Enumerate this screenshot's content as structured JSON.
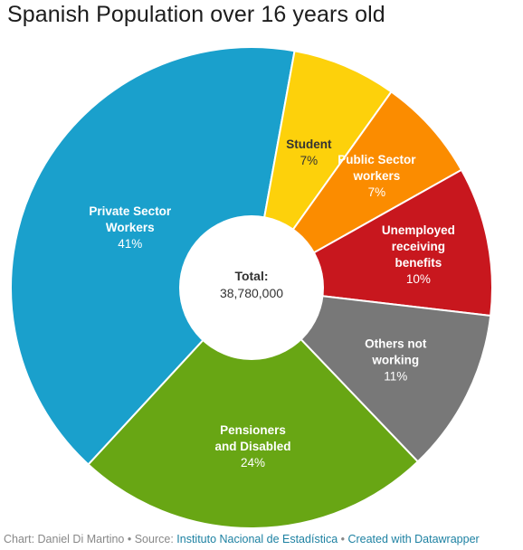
{
  "chart_data": {
    "type": "pie",
    "title": "Spanish Population over 16 years old",
    "center": {
      "label": "Total:",
      "value": "38,780,000"
    },
    "slices": [
      {
        "name": [
          "Private Sector",
          "Workers"
        ],
        "value": 41,
        "label": "41%",
        "color": "#1aa0cc",
        "text": "light"
      },
      {
        "name": [
          "Student"
        ],
        "value": 7,
        "label": "7%",
        "color": "#fdd10b",
        "text": "dark"
      },
      {
        "name": [
          "Public Sector",
          "workers"
        ],
        "value": 7,
        "label": "7%",
        "color": "#fb8c00",
        "text": "light"
      },
      {
        "name": [
          "Unemployed",
          "receiving",
          "benefits"
        ],
        "value": 10,
        "label": "10%",
        "color": "#c8171e",
        "text": "light"
      },
      {
        "name": [
          "Others not",
          "working"
        ],
        "value": 11,
        "label": "11%",
        "color": "#787878",
        "text": "light"
      },
      {
        "name": [
          "Pensioners",
          "and Disabled"
        ],
        "value": 24,
        "label": "24%",
        "color": "#68a614",
        "text": "light"
      }
    ]
  },
  "footer": {
    "chart_prefix": "Chart: ",
    "author": "Daniel Di Martino",
    "sep1": " • Source: ",
    "source": "Instituto Nacional de Estadística",
    "sep2": " • ",
    "created": "Created with Datawrapper"
  }
}
